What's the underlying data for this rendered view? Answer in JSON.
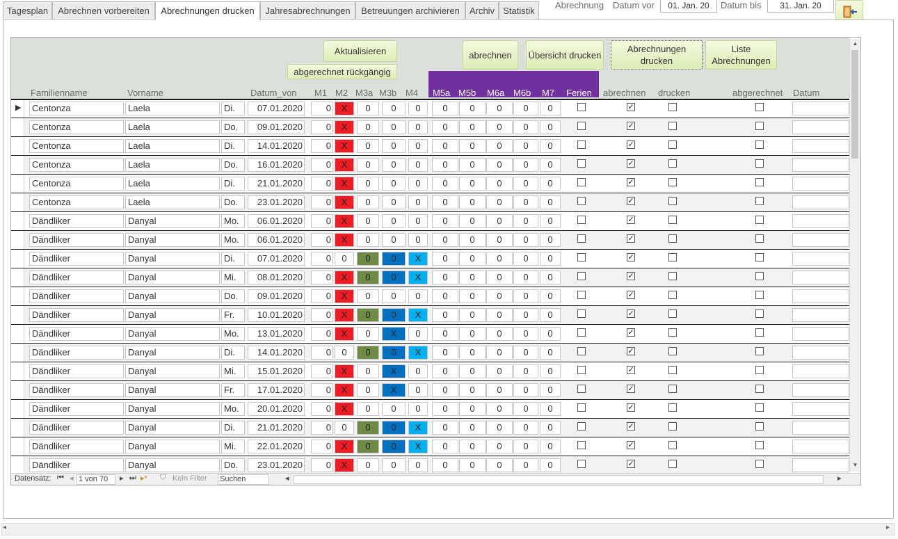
{
  "tabs": [
    "Tagesplan",
    "Abrechnen vorbereiten",
    "Abrechnungen drucken",
    "Jahresabrechnungen",
    "Betreuungen archivieren",
    "Archiv",
    "Statistik"
  ],
  "active_tab_index": 2,
  "header": {
    "abrechnung_label": "Abrechnung",
    "datum_vor_label": "Datum vor",
    "datum_vor_value": "01. Jan. 20",
    "datum_bis_label": "Datum bis",
    "datum_bis_value": "31. Jan. 20"
  },
  "buttons": {
    "aktualisieren": "Aktualisieren",
    "rueckgaengig": "abgerechnet rückgängig",
    "abrechnen": "abrechnen",
    "uebersicht_drucken": "Übersicht drucken",
    "abrechnungen_drucken": "Abrechnungen drucken",
    "liste_abrechnungen": "Liste Abrechnungen"
  },
  "columns": {
    "familienname": "Familienname",
    "vorname": "Vorname",
    "datum_von": "Datum_von",
    "m1": "M1",
    "m2": "M2",
    "m3a": "M3a",
    "m3b": "M3b",
    "m4": "M4",
    "m5a": "M5a",
    "m5b": "M5b",
    "m6a": "M6a",
    "m6b": "M6b",
    "m7": "M7",
    "ferien": "Ferien",
    "abrechnen": "abrechnen",
    "drucken": "drucken",
    "abgerechnet": "abgerechnet",
    "datum": "Datum"
  },
  "colors": {
    "red": "#ee1c24",
    "olive": "#6f8a44",
    "blue": "#0070c0",
    "cyan": "#00b0f0",
    "purple": "#7030a0"
  },
  "rows": [
    {
      "fam": "Centonza",
      "vor": "Laela",
      "tag": "Di.",
      "datum": "07.01.2020",
      "m1": "0",
      "m2": "X",
      "m2c": "red",
      "m3a": "0",
      "m3ac": "",
      "m3b": "0",
      "m3bc": "",
      "m4": "0",
      "m4c": ""
    },
    {
      "fam": "Centonza",
      "vor": "Laela",
      "tag": "Do.",
      "datum": "09.01.2020",
      "m1": "0",
      "m2": "X",
      "m2c": "red",
      "m3a": "0",
      "m3ac": "",
      "m3b": "0",
      "m3bc": "",
      "m4": "0",
      "m4c": ""
    },
    {
      "fam": "Centonza",
      "vor": "Laela",
      "tag": "Di.",
      "datum": "14.01.2020",
      "m1": "0",
      "m2": "X",
      "m2c": "red",
      "m3a": "0",
      "m3ac": "",
      "m3b": "0",
      "m3bc": "",
      "m4": "0",
      "m4c": ""
    },
    {
      "fam": "Centonza",
      "vor": "Laela",
      "tag": "Do.",
      "datum": "16.01.2020",
      "m1": "0",
      "m2": "X",
      "m2c": "red",
      "m3a": "0",
      "m3ac": "",
      "m3b": "0",
      "m3bc": "",
      "m4": "0",
      "m4c": ""
    },
    {
      "fam": "Centonza",
      "vor": "Laela",
      "tag": "Di.",
      "datum": "21.01.2020",
      "m1": "0",
      "m2": "X",
      "m2c": "red",
      "m3a": "0",
      "m3ac": "",
      "m3b": "0",
      "m3bc": "",
      "m4": "0",
      "m4c": ""
    },
    {
      "fam": "Centonza",
      "vor": "Laela",
      "tag": "Do.",
      "datum": "23.01.2020",
      "m1": "0",
      "m2": "X",
      "m2c": "red",
      "m3a": "0",
      "m3ac": "",
      "m3b": "0",
      "m3bc": "",
      "m4": "0",
      "m4c": ""
    },
    {
      "fam": "Dändliker",
      "vor": "Danyal",
      "tag": "Mo.",
      "datum": "06.01.2020",
      "m1": "0",
      "m2": "X",
      "m2c": "red",
      "m3a": "0",
      "m3ac": "",
      "m3b": "0",
      "m3bc": "",
      "m4": "0",
      "m4c": ""
    },
    {
      "fam": "Dändliker",
      "vor": "Danyal",
      "tag": "Mo.",
      "datum": "06.01.2020",
      "m1": "0",
      "m2": "X",
      "m2c": "red",
      "m3a": "0",
      "m3ac": "",
      "m3b": "0",
      "m3bc": "",
      "m4": "0",
      "m4c": ""
    },
    {
      "fam": "Dändliker",
      "vor": "Danyal",
      "tag": "Di.",
      "datum": "07.01.2020",
      "m1": "0",
      "m2": "0",
      "m2c": "",
      "m3a": "0",
      "m3ac": "olive",
      "m3b": "0",
      "m3bc": "blue",
      "m4": "X",
      "m4c": "cyan"
    },
    {
      "fam": "Dändliker",
      "vor": "Danyal",
      "tag": "Mi.",
      "datum": "08.01.2020",
      "m1": "0",
      "m2": "X",
      "m2c": "red",
      "m3a": "0",
      "m3ac": "olive",
      "m3b": "0",
      "m3bc": "blue",
      "m4": "X",
      "m4c": "cyan"
    },
    {
      "fam": "Dändliker",
      "vor": "Danyal",
      "tag": "Do.",
      "datum": "09.01.2020",
      "m1": "0",
      "m2": "X",
      "m2c": "red",
      "m3a": "0",
      "m3ac": "",
      "m3b": "0",
      "m3bc": "",
      "m4": "0",
      "m4c": ""
    },
    {
      "fam": "Dändliker",
      "vor": "Danyal",
      "tag": "Fr.",
      "datum": "10.01.2020",
      "m1": "0",
      "m2": "X",
      "m2c": "red",
      "m3a": "0",
      "m3ac": "olive",
      "m3b": "0",
      "m3bc": "blue",
      "m4": "X",
      "m4c": "cyan"
    },
    {
      "fam": "Dändliker",
      "vor": "Danyal",
      "tag": "Mo.",
      "datum": "13.01.2020",
      "m1": "0",
      "m2": "X",
      "m2c": "red",
      "m3a": "0",
      "m3ac": "",
      "m3b": "X",
      "m3bc": "blue",
      "m4": "0",
      "m4c": ""
    },
    {
      "fam": "Dändliker",
      "vor": "Danyal",
      "tag": "Di.",
      "datum": "14.01.2020",
      "m1": "0",
      "m2": "0",
      "m2c": "",
      "m3a": "0",
      "m3ac": "olive",
      "m3b": "0",
      "m3bc": "blue",
      "m4": "X",
      "m4c": "cyan"
    },
    {
      "fam": "Dändliker",
      "vor": "Danyal",
      "tag": "Mi.",
      "datum": "15.01.2020",
      "m1": "0",
      "m2": "X",
      "m2c": "red",
      "m3a": "0",
      "m3ac": "",
      "m3b": "X",
      "m3bc": "blue",
      "m4": "0",
      "m4c": ""
    },
    {
      "fam": "Dändliker",
      "vor": "Danyal",
      "tag": "Fr.",
      "datum": "17.01.2020",
      "m1": "0",
      "m2": "X",
      "m2c": "red",
      "m3a": "0",
      "m3ac": "",
      "m3b": "X",
      "m3bc": "blue",
      "m4": "0",
      "m4c": ""
    },
    {
      "fam": "Dändliker",
      "vor": "Danyal",
      "tag": "Mo.",
      "datum": "20.01.2020",
      "m1": "0",
      "m2": "X",
      "m2c": "red",
      "m3a": "0",
      "m3ac": "",
      "m3b": "0",
      "m3bc": "",
      "m4": "0",
      "m4c": ""
    },
    {
      "fam": "Dändliker",
      "vor": "Danyal",
      "tag": "Di.",
      "datum": "21.01.2020",
      "m1": "0",
      "m2": "0",
      "m2c": "",
      "m3a": "0",
      "m3ac": "olive",
      "m3b": "0",
      "m3bc": "blue",
      "m4": "X",
      "m4c": "cyan"
    },
    {
      "fam": "Dändliker",
      "vor": "Danyal",
      "tag": "Mi.",
      "datum": "22.01.2020",
      "m1": "0",
      "m2": "X",
      "m2c": "red",
      "m3a": "0",
      "m3ac": "olive",
      "m3b": "0",
      "m3bc": "blue",
      "m4": "X",
      "m4c": "cyan"
    },
    {
      "fam": "Dändliker",
      "vor": "Danyal",
      "tag": "Do.",
      "datum": "23.01.2020",
      "m1": "0",
      "m2": "X",
      "m2c": "red",
      "m3a": "0",
      "m3ac": "",
      "m3b": "0",
      "m3bc": "",
      "m4": "0",
      "m4c": ""
    }
  ],
  "row_defaults": {
    "m5a": "0",
    "m5b": "0",
    "m6a": "0",
    "m6b": "0",
    "m7": "0",
    "ferien": false,
    "abrechnen": true,
    "drucken": false,
    "abgerechnet": false
  },
  "navigation": {
    "label": "Datensatz:",
    "position": "1 von 70",
    "filter": "Kein Filter",
    "search": "Suchen"
  }
}
